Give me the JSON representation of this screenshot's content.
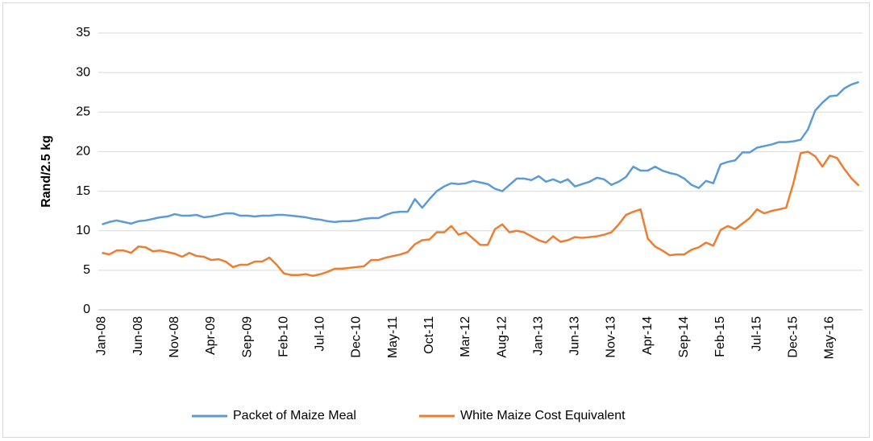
{
  "chart_data": {
    "type": "line",
    "y_label": "Rand/2.5 kg",
    "categories": [
      "Jan-08",
      null,
      null,
      null,
      null,
      "Jun-08",
      null,
      null,
      null,
      null,
      "Nov-08",
      null,
      null,
      null,
      null,
      "Apr-09",
      null,
      null,
      null,
      null,
      "Sep-09",
      null,
      null,
      null,
      null,
      "Feb-10",
      null,
      null,
      null,
      null,
      "Jul-10",
      null,
      null,
      null,
      null,
      "Dec-10",
      null,
      null,
      null,
      null,
      "May-11",
      null,
      null,
      null,
      null,
      "Oct-11",
      null,
      null,
      null,
      null,
      "Mar-12",
      null,
      null,
      null,
      null,
      "Aug-12",
      null,
      null,
      null,
      null,
      "Jan-13",
      null,
      null,
      null,
      null,
      "Jun-13",
      null,
      null,
      null,
      null,
      "Nov-13",
      null,
      null,
      null,
      null,
      "Apr-14",
      null,
      null,
      null,
      null,
      "Sep-14",
      null,
      null,
      null,
      null,
      "Feb-15",
      null,
      null,
      null,
      null,
      "Jul-15",
      null,
      null,
      null,
      null,
      "Dec-15",
      null,
      null,
      null,
      null,
      "May-16",
      null,
      null,
      null,
      null
    ],
    "series": [
      {
        "name": "Packet of Maize Meal",
        "color": "#5b9bd5",
        "values": [
          10.8,
          11.1,
          11.3,
          11.1,
          10.9,
          11.2,
          11.3,
          11.5,
          11.7,
          11.8,
          12.1,
          11.9,
          11.9,
          12.0,
          11.7,
          11.8,
          12.0,
          12.2,
          12.2,
          11.9,
          11.9,
          11.8,
          11.9,
          11.9,
          12.0,
          12.0,
          11.9,
          11.8,
          11.7,
          11.5,
          11.4,
          11.2,
          11.1,
          11.2,
          11.2,
          11.3,
          11.5,
          11.6,
          11.6,
          12.0,
          12.3,
          12.4,
          12.4,
          14.0,
          12.9,
          14.0,
          15.0,
          15.6,
          16.0,
          15.9,
          16.0,
          16.3,
          16.1,
          15.9,
          15.3,
          15.0,
          15.8,
          16.6,
          16.6,
          16.4,
          16.9,
          16.2,
          16.5,
          16.1,
          16.5,
          15.6,
          15.9,
          16.2,
          16.7,
          16.5,
          15.8,
          16.2,
          16.8,
          18.1,
          17.6,
          17.6,
          18.1,
          17.6,
          17.3,
          17.1,
          16.6,
          15.8,
          15.4,
          16.3,
          16.0,
          18.4,
          18.7,
          18.9,
          19.9,
          19.9,
          20.5,
          20.7,
          20.9,
          21.2,
          21.2,
          21.3,
          21.5,
          22.8,
          25.2,
          26.2,
          27.0,
          27.1,
          28.0,
          28.5,
          28.8
        ]
      },
      {
        "name": "White Maize Cost Equivalent",
        "color": "#ed7d31",
        "values": [
          7.2,
          7.0,
          7.5,
          7.5,
          7.2,
          8.0,
          7.9,
          7.4,
          7.5,
          7.3,
          7.1,
          6.7,
          7.2,
          6.8,
          6.7,
          6.3,
          6.4,
          6.1,
          5.4,
          5.7,
          5.7,
          6.1,
          6.1,
          6.6,
          5.7,
          4.6,
          4.4,
          4.4,
          4.5,
          4.3,
          4.5,
          4.8,
          5.2,
          5.2,
          5.3,
          5.4,
          5.5,
          6.3,
          6.3,
          6.6,
          6.8,
          7.0,
          7.3,
          8.3,
          8.8,
          8.9,
          9.8,
          9.8,
          10.6,
          9.5,
          9.8,
          9.0,
          8.2,
          8.2,
          10.2,
          10.8,
          9.8,
          10.0,
          9.8,
          9.3,
          8.8,
          8.5,
          9.3,
          8.6,
          8.8,
          9.2,
          9.1,
          9.2,
          9.3,
          9.5,
          9.8,
          10.8,
          12.0,
          12.4,
          12.7,
          9.0,
          8.0,
          7.5,
          6.9,
          7.0,
          7.0,
          7.6,
          7.9,
          8.5,
          8.1,
          10.1,
          10.6,
          10.2,
          10.9,
          11.6,
          12.7,
          12.2,
          12.5,
          12.7,
          12.9,
          16.0,
          19.8,
          20.0,
          19.4,
          18.1,
          19.5,
          19.2,
          17.8,
          16.6,
          15.7
        ]
      }
    ],
    "ylim": [
      0,
      35
    ],
    "yticks": [
      0,
      5,
      10,
      15,
      20,
      25,
      30,
      35
    ],
    "grid": true,
    "legend": "bottom"
  }
}
